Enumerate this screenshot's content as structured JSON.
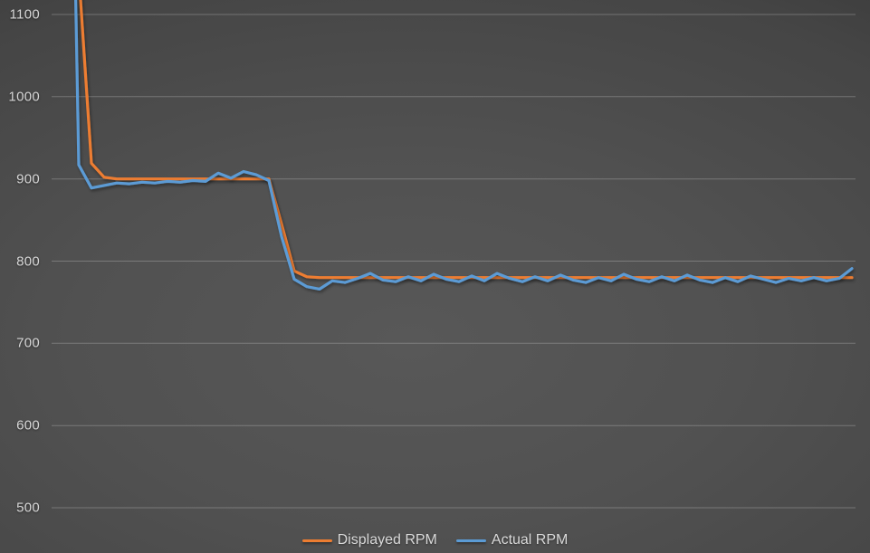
{
  "chart_data": {
    "type": "line",
    "title": "",
    "xlabel": "",
    "ylabel": "",
    "ylim": [
      500,
      1100
    ],
    "yticks": [
      1100,
      1000,
      900,
      800,
      700,
      600,
      500
    ],
    "x_axis_labels_visible": false,
    "grid": true,
    "legend_position": "bottom-center",
    "series": [
      {
        "name": "Displayed RPM",
        "color": "#ED7D31",
        "values": [
          1430,
          1150,
          919,
          902,
          900,
          900,
          900,
          900,
          900,
          900,
          900,
          900,
          900,
          900,
          900,
          900,
          900,
          845,
          788,
          781,
          780,
          780,
          780,
          780,
          780,
          780,
          780,
          780,
          780,
          780,
          780,
          780,
          780,
          780,
          780,
          780,
          780,
          780,
          780,
          780,
          780,
          780,
          780,
          780,
          780,
          780,
          780,
          780,
          780,
          780,
          780,
          780,
          780,
          780,
          780,
          780,
          780,
          780,
          780,
          780,
          780,
          780,
          780
        ]
      },
      {
        "name": "Actual RPM",
        "color": "#5B9BD5",
        "values": [
          1750,
          917,
          889,
          892,
          895,
          894,
          896,
          895,
          897,
          896,
          898,
          897,
          907,
          901,
          909,
          905,
          898,
          830,
          778,
          769,
          766,
          776,
          774,
          779,
          785,
          777,
          775,
          781,
          776,
          784,
          778,
          775,
          782,
          776,
          785,
          779,
          775,
          781,
          776,
          783,
          777,
          774,
          780,
          776,
          784,
          778,
          775,
          781,
          776,
          783,
          777,
          774,
          780,
          775,
          782,
          778,
          774,
          779,
          776,
          780,
          776,
          779,
          791
        ]
      }
    ]
  },
  "colors": {
    "background_center": "#585858",
    "background_edge": "#242424",
    "gridline": "rgba(255,255,255,0.24)",
    "tick_label": "#d7d7d7",
    "legend_label": "#d9d9d9"
  }
}
